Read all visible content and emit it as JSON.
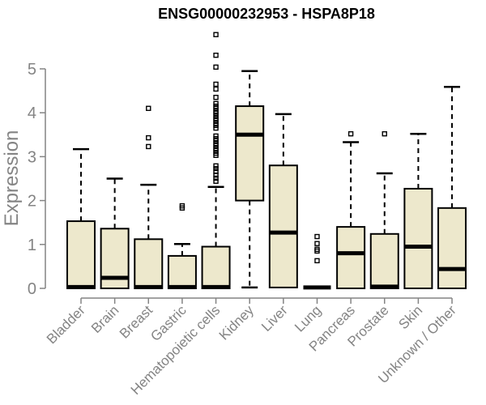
{
  "chart_data": {
    "type": "boxplot",
    "title": "ENSG00000232953 - HSPA8P18",
    "ylabel": "Expression",
    "xlabel": "",
    "ylim": [
      0,
      5
    ],
    "yticks": [
      "0",
      "1",
      "2",
      "3",
      "4",
      "5"
    ],
    "grid": false,
    "legend": null,
    "categories": [
      "Bladder",
      "Brain",
      "Breast",
      "Gastric",
      "Hematopoietic cells",
      "Kidney",
      "Liver",
      "Lung",
      "Pancreas",
      "Prostate",
      "Skin",
      "Unknown / Other"
    ],
    "boxes": [
      {
        "category": "Bladder",
        "whisker_low": 0,
        "q1": 0,
        "median": 0.03,
        "q3": 1.53,
        "whisker_high": 3.17,
        "outliers": []
      },
      {
        "category": "Brain",
        "whisker_low": 0,
        "q1": 0,
        "median": 0.24,
        "q3": 1.36,
        "whisker_high": 2.5,
        "outliers": []
      },
      {
        "category": "Breast",
        "whisker_low": 0,
        "q1": 0,
        "median": 0.03,
        "q3": 1.12,
        "whisker_high": 2.36,
        "outliers": [
          3.23,
          3.43,
          4.1
        ]
      },
      {
        "category": "Gastric",
        "whisker_low": 0,
        "q1": 0,
        "median": 0.03,
        "q3": 0.74,
        "whisker_high": 1.01,
        "outliers": [
          1.83,
          1.88
        ]
      },
      {
        "category": "Hematopoietic cells",
        "whisker_low": 0,
        "q1": 0,
        "median": 0.03,
        "q3": 0.95,
        "whisker_high": 2.31,
        "outliers": [
          2.44,
          2.51,
          2.58,
          2.66,
          2.73,
          2.79,
          3.03,
          3.08,
          3.14,
          3.19,
          3.25,
          3.3,
          3.36,
          3.41,
          3.47,
          3.65,
          3.71,
          3.76,
          3.82,
          3.87,
          3.93,
          3.99,
          4.04,
          4.1,
          4.15,
          4.21,
          4.35,
          4.54,
          4.65,
          5.04,
          5.31,
          5.78
        ]
      },
      {
        "category": "Kidney",
        "whisker_low": 0.02,
        "q1": 2.0,
        "median": 3.5,
        "q3": 4.15,
        "whisker_high": 4.95,
        "outliers": []
      },
      {
        "category": "Liver",
        "whisker_low": 0,
        "q1": 0.02,
        "median": 1.27,
        "q3": 2.8,
        "whisker_high": 3.97,
        "outliers": []
      },
      {
        "category": "Lung",
        "whisker_low": 0.02,
        "q1": 0.02,
        "median": 0.02,
        "q3": 0.02,
        "whisker_high": 0.02,
        "outliers": [
          0.63,
          0.85,
          0.89,
          1.02,
          1.18
        ]
      },
      {
        "category": "Pancreas",
        "whisker_low": 0,
        "q1": 0,
        "median": 0.8,
        "q3": 1.4,
        "whisker_high": 3.33,
        "outliers": [
          3.52
        ]
      },
      {
        "category": "Prostate",
        "whisker_low": 0,
        "q1": 0,
        "median": 0.04,
        "q3": 1.24,
        "whisker_high": 2.62,
        "outliers": [
          3.52
        ]
      },
      {
        "category": "Skin",
        "whisker_low": 0,
        "q1": 0,
        "median": 0.95,
        "q3": 2.27,
        "whisker_high": 3.52,
        "outliers": []
      },
      {
        "category": "Unknown / Other",
        "whisker_low": 0,
        "q1": 0,
        "median": 0.44,
        "q3": 1.83,
        "whisker_high": 4.59,
        "outliers": []
      }
    ],
    "colors": {
      "box_fill": "#EDE8CC",
      "box_stroke": "#000000",
      "median": "#000000",
      "whisker": "#000000",
      "outlier_stroke": "#000000",
      "axis": "#848484",
      "tick_label": "#848484",
      "title": "#000000",
      "background": "#FFFFFF"
    }
  }
}
